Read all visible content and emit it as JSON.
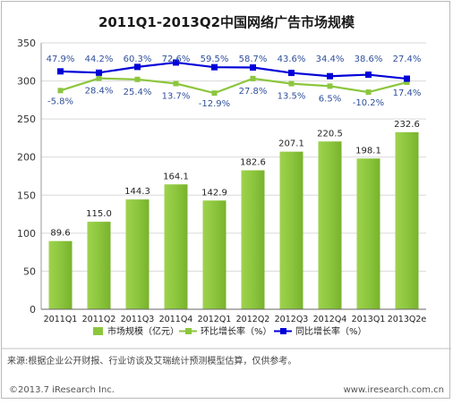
{
  "chart_data": {
    "type": "bar",
    "title": "2011Q1-2013Q2中国网络广告市场规模",
    "categories": [
      "2011Q1",
      "2011Q2",
      "2011Q3",
      "2011Q4",
      "2012Q1",
      "2012Q2",
      "2012Q3",
      "2012Q4",
      "2013Q1",
      "2013Q2e"
    ],
    "series": [
      {
        "name": "市场规模（亿元）",
        "kind": "bar",
        "color": "#8cc63e",
        "values": [
          89.6,
          115.0,
          144.3,
          164.1,
          142.9,
          182.6,
          207.1,
          220.5,
          198.1,
          232.6
        ],
        "labels": [
          "89.6",
          "115.0",
          "144.3",
          "164.1",
          "142.9",
          "182.6",
          "207.1",
          "220.5",
          "198.1",
          "232.6"
        ]
      },
      {
        "name": "环比增长率（%）",
        "kind": "line",
        "color": "#8cc63e",
        "values": [
          -5.8,
          28.4,
          25.4,
          13.7,
          -12.9,
          27.8,
          13.5,
          6.5,
          -10.2,
          17.4
        ],
        "labels": [
          "-5.8%",
          "28.4%",
          "25.4%",
          "13.7%",
          "-12.9%",
          "27.8%",
          "13.5%",
          "6.5%",
          "-10.2%",
          "17.4%"
        ]
      },
      {
        "name": "同比增长率（%）",
        "kind": "line",
        "color": "#0000d8",
        "values": [
          47.9,
          44.2,
          60.3,
          72.6,
          59.5,
          58.7,
          43.6,
          34.4,
          38.6,
          27.4
        ],
        "labels": [
          "47.9%",
          "44.2%",
          "60.3%",
          "72.6%",
          "59.5%",
          "58.7%",
          "43.6%",
          "34.4%",
          "38.6%",
          "27.4%"
        ]
      }
    ],
    "ylim": [
      0,
      350
    ],
    "yticks": [
      0,
      50,
      100,
      150,
      200,
      250,
      300,
      350
    ],
    "grid": true,
    "legend_position": "bottom",
    "label_color": "#2e4f9a"
  },
  "footer": {
    "source": "来源:根据企业公开财报、行业访谈及艾瑞统计预测模型估算，仅供参考。",
    "copyright": "©2013.7 iResearch Inc.",
    "website": "www.iresearch.com.cn"
  }
}
